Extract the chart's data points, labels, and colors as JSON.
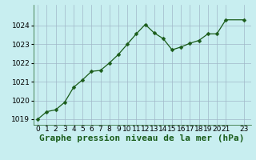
{
  "x": [
    0,
    1,
    2,
    3,
    4,
    5,
    6,
    7,
    8,
    9,
    10,
    11,
    12,
    13,
    14,
    15,
    16,
    17,
    18,
    19,
    20,
    21,
    23
  ],
  "y": [
    1019.0,
    1019.4,
    1019.5,
    1019.9,
    1020.7,
    1021.1,
    1021.55,
    1021.6,
    1022.0,
    1022.45,
    1023.0,
    1023.55,
    1024.05,
    1023.6,
    1023.3,
    1022.7,
    1022.85,
    1023.05,
    1023.2,
    1023.55,
    1023.55,
    1024.3,
    1024.3
  ],
  "line_color": "#1a5c1a",
  "marker": "D",
  "marker_size": 2.5,
  "bg_color": "#c8eef0",
  "grid_color": "#a0b8c8",
  "title": "Graphe pression niveau de la mer (hPa)",
  "ylim": [
    1018.7,
    1025.1
  ],
  "yticks": [
    1019,
    1020,
    1021,
    1022,
    1023,
    1024
  ],
  "xticks": [
    0,
    1,
    2,
    3,
    4,
    5,
    6,
    7,
    8,
    9,
    10,
    11,
    12,
    13,
    14,
    15,
    16,
    17,
    18,
    19,
    20,
    21,
    23
  ],
  "tick_fontsize": 6.5,
  "title_fontsize": 8,
  "title_fontweight": "bold"
}
